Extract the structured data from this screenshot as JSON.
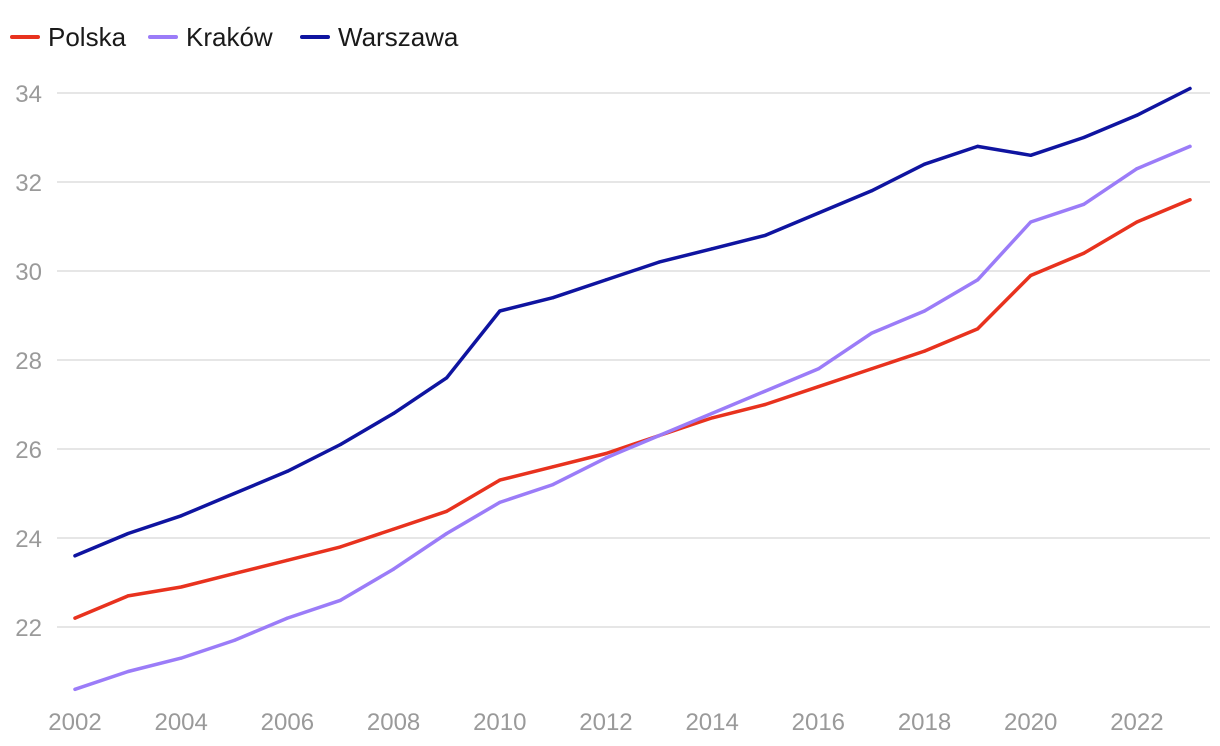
{
  "chart_data": {
    "type": "line",
    "title": "",
    "xlabel": "",
    "ylabel": "",
    "x": [
      2002,
      2003,
      2004,
      2005,
      2006,
      2007,
      2008,
      2009,
      2010,
      2011,
      2012,
      2013,
      2014,
      2015,
      2016,
      2017,
      2018,
      2019,
      2020,
      2021,
      2022,
      2023
    ],
    "xticks": [
      "2002",
      "2004",
      "2006",
      "2008",
      "2010",
      "2012",
      "2014",
      "2016",
      "2018",
      "2020",
      "2022"
    ],
    "yticks": [
      "22",
      "24",
      "26",
      "28",
      "30",
      "32",
      "34"
    ],
    "xlim": [
      2002,
      2023
    ],
    "ylim": [
      20.6,
      35.2
    ],
    "grid": true,
    "legend_position": "top-left",
    "series": [
      {
        "name": "Polska",
        "color": "#e8321e",
        "values": [
          22.2,
          22.7,
          22.9,
          23.2,
          23.5,
          23.8,
          24.2,
          24.6,
          25.3,
          25.6,
          25.9,
          26.3,
          26.7,
          27.0,
          27.4,
          27.8,
          28.2,
          28.7,
          29.9,
          30.4,
          31.1,
          31.6
        ]
      },
      {
        "name": "Kraków",
        "color": "#9b7cf8",
        "values": [
          20.6,
          21.0,
          21.3,
          21.7,
          22.2,
          22.6,
          23.3,
          24.1,
          24.8,
          25.2,
          25.8,
          26.3,
          26.8,
          27.3,
          27.8,
          28.6,
          29.1,
          29.8,
          31.1,
          31.5,
          32.3,
          32.8
        ]
      },
      {
        "name": "Warszawa",
        "color": "#0f14a0",
        "values": [
          23.6,
          24.1,
          24.5,
          25.0,
          25.5,
          26.1,
          26.8,
          27.6,
          29.1,
          29.4,
          29.8,
          30.2,
          30.5,
          30.8,
          31.3,
          31.8,
          32.4,
          32.8,
          32.6,
          33.0,
          33.5,
          34.1
        ]
      }
    ]
  }
}
